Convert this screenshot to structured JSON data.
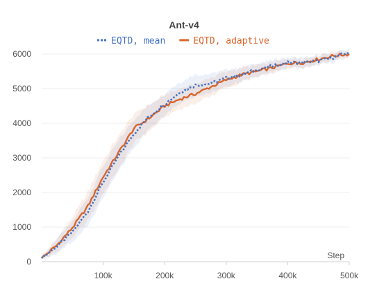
{
  "chart_data": {
    "type": "line",
    "title": "Ant-v4",
    "xlabel": "Step",
    "ylabel": "",
    "xlim": [
      0,
      500000
    ],
    "ylim": [
      0,
      6000
    ],
    "grid": true,
    "legend_placement": "top-center",
    "x_ticks": [
      {
        "value": 100000,
        "label": "100k"
      },
      {
        "value": 200000,
        "label": "200k"
      },
      {
        "value": 300000,
        "label": "300k"
      },
      {
        "value": 400000,
        "label": "400k"
      },
      {
        "value": 500000,
        "label": "500k"
      }
    ],
    "y_ticks": [
      {
        "value": 0,
        "label": "0"
      },
      {
        "value": 1000,
        "label": "1000"
      },
      {
        "value": 2000,
        "label": "2000"
      },
      {
        "value": 3000,
        "label": "3000"
      },
      {
        "value": 4000,
        "label": "4000"
      },
      {
        "value": 5000,
        "label": "5000"
      },
      {
        "value": 6000,
        "label": "6000"
      }
    ],
    "x": [
      0,
      25000,
      50000,
      75000,
      100000,
      125000,
      150000,
      175000,
      200000,
      225000,
      250000,
      275000,
      300000,
      325000,
      350000,
      375000,
      400000,
      425000,
      450000,
      475000,
      500000
    ],
    "series": [
      {
        "name": "EQTD, mean",
        "color": "#4472c4",
        "style": "dotted",
        "values": [
          100,
          450,
          850,
          1450,
          2300,
          3050,
          3700,
          4200,
          4550,
          4900,
          5100,
          5150,
          5300,
          5400,
          5550,
          5650,
          5750,
          5750,
          5800,
          5900,
          6050
        ],
        "band_width": [
          60,
          200,
          300,
          400,
          450,
          450,
          400,
          350,
          300,
          300,
          300,
          280,
          250,
          200,
          200,
          180,
          150,
          150,
          130,
          120,
          100
        ]
      },
      {
        "name": "EQTD, adaptive",
        "color": "#d9652b",
        "style": "solid",
        "values": [
          100,
          480,
          980,
          1600,
          2450,
          3150,
          3850,
          4150,
          4500,
          4700,
          4850,
          5050,
          5250,
          5400,
          5500,
          5600,
          5730,
          5750,
          5850,
          5950,
          6000
        ],
        "band_width": [
          60,
          200,
          300,
          420,
          480,
          480,
          420,
          380,
          320,
          300,
          280,
          260,
          230,
          200,
          180,
          160,
          140,
          130,
          120,
          110,
          100
        ]
      }
    ]
  }
}
